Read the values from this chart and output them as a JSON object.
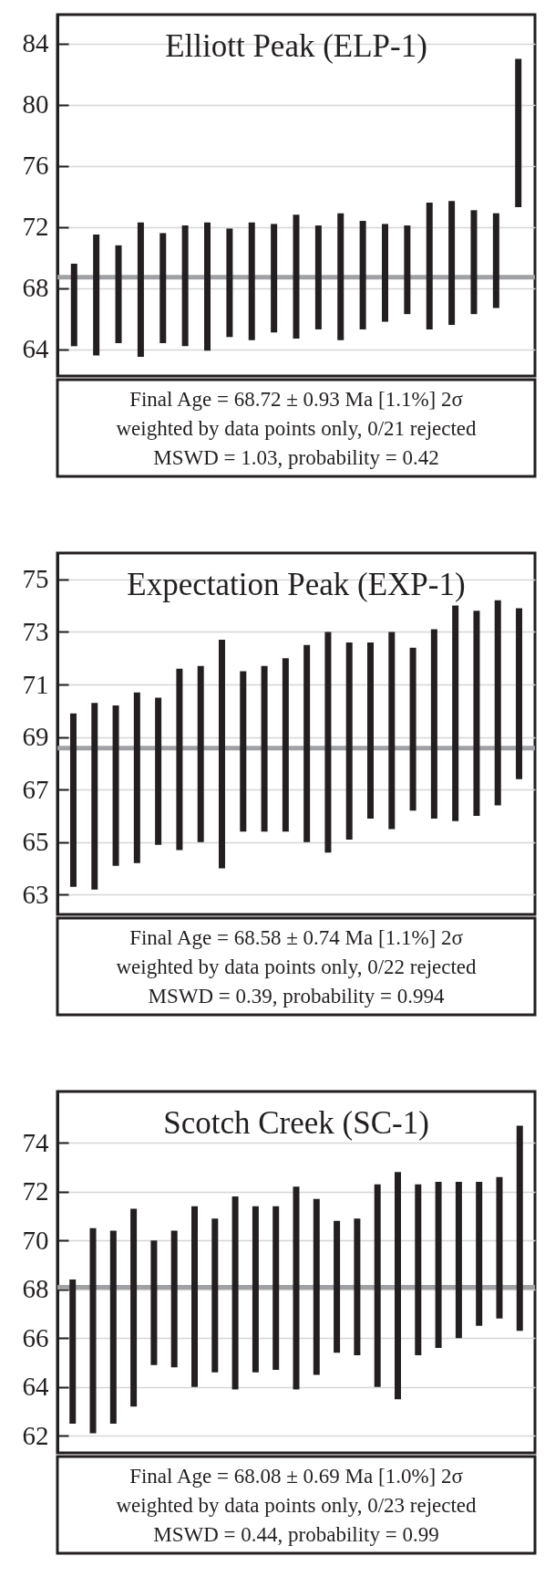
{
  "chart_data": [
    {
      "type": "bar",
      "title": "Elliott Peak (ELP-1)",
      "categories": [
        null,
        null,
        null,
        null,
        null,
        null,
        null,
        null,
        null,
        null,
        null,
        null,
        null,
        null,
        null,
        null,
        null,
        null,
        null,
        null,
        null
      ],
      "base": [
        64.2,
        63.6,
        64.4,
        63.5,
        64.4,
        64.2,
        63.9,
        64.8,
        64.6,
        65.1,
        64.7,
        65.3,
        64.6,
        65.3,
        65.8,
        66.3,
        65.3,
        65.6,
        66.3,
        66.7,
        73.3
      ],
      "values": [
        5.4,
        7.9,
        6.4,
        8.8,
        7.2,
        7.9,
        8.4,
        7.1,
        7.7,
        7.1,
        8.1,
        6.8,
        8.3,
        7.1,
        6.4,
        5.8,
        8.3,
        8.1,
        6.8,
        6.2,
        9.7
      ],
      "color": "#231f20",
      "ylim": [
        62.25,
        85.9
      ],
      "yticks": [
        64,
        68,
        72,
        76,
        80,
        84
      ],
      "grid": "y",
      "tick_labels": "y",
      "ref_lines": [
        {
          "axis": "y",
          "value": 68.72,
          "color": "#a0a1a5"
        }
      ],
      "annotations": [
        "Final Age = 68.72 ± 0.93 Ma [1.1%] 2σ",
        "weighted by data points only, 0/21 rejected",
        "MSWD = 1.03, probability = 0.42"
      ]
    },
    {
      "type": "bar",
      "title": "Expectation Peak (EXP-1)",
      "categories": [
        null,
        null,
        null,
        null,
        null,
        null,
        null,
        null,
        null,
        null,
        null,
        null,
        null,
        null,
        null,
        null,
        null,
        null,
        null,
        null,
        null,
        null
      ],
      "base": [
        63.3,
        63.2,
        64.1,
        64.2,
        64.9,
        64.7,
        65.0,
        64.0,
        65.4,
        65.4,
        65.4,
        65.0,
        64.6,
        65.1,
        65.9,
        65.5,
        66.2,
        65.9,
        65.8,
        66.0,
        66.4,
        67.4
      ],
      "values": [
        6.6,
        7.1,
        6.1,
        6.5,
        5.6,
        6.9,
        6.7,
        8.7,
        6.1,
        6.3,
        6.6,
        7.5,
        8.4,
        7.5,
        6.7,
        7.5,
        6.2,
        7.2,
        8.2,
        7.8,
        7.8,
        6.5
      ],
      "color": "#231f20",
      "ylim": [
        62.25,
        76.0
      ],
      "yticks": [
        63,
        65,
        67,
        69,
        71,
        73,
        75
      ],
      "grid": "y",
      "tick_labels": "y",
      "ref_lines": [
        {
          "axis": "y",
          "value": 68.58,
          "color": "#a0a1a5"
        }
      ],
      "annotations": [
        "Final Age = 68.58 ± 0.74 Ma [1.1%] 2σ",
        "weighted by data points only, 0/22 rejected",
        "MSWD = 0.39, probability = 0.994"
      ]
    },
    {
      "type": "bar",
      "title": "Scotch Creek (SC-1)",
      "categories": [
        null,
        null,
        null,
        null,
        null,
        null,
        null,
        null,
        null,
        null,
        null,
        null,
        null,
        null,
        null,
        null,
        null,
        null,
        null,
        null,
        null,
        null,
        null
      ],
      "base": [
        62.5,
        62.1,
        62.5,
        63.2,
        64.9,
        64.8,
        64.0,
        64.6,
        63.9,
        64.6,
        64.7,
        63.9,
        64.5,
        65.4,
        65.3,
        64.0,
        63.5,
        65.3,
        65.6,
        66.0,
        66.5,
        66.8,
        66.3
      ],
      "values": [
        5.9,
        8.4,
        7.9,
        8.1,
        5.1,
        5.6,
        7.4,
        6.3,
        7.9,
        6.8,
        6.7,
        8.3,
        7.2,
        5.4,
        5.6,
        8.3,
        9.3,
        7.0,
        6.8,
        6.4,
        5.9,
        5.8,
        8.4
      ],
      "color": "#231f20",
      "ylim": [
        61.3,
        76.1
      ],
      "yticks": [
        62,
        64,
        66,
        68,
        70,
        72,
        74
      ],
      "grid": "y",
      "tick_labels": "y",
      "ref_lines": [
        {
          "axis": "y",
          "value": 68.08,
          "color": "#a0a1a5"
        }
      ],
      "annotations": [
        "Final Age = 68.08 ± 0.69 Ma [1.0%] 2σ",
        "weighted by data points only, 0/23 rejected",
        "MSWD = 0.44, probability = 0.99"
      ]
    }
  ]
}
